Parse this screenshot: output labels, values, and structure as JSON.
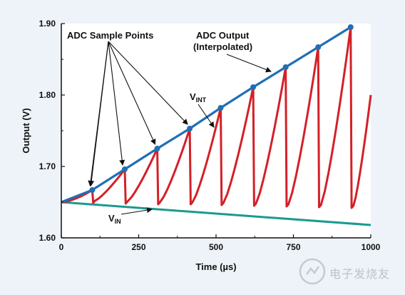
{
  "chart_data": {
    "type": "line",
    "xlabel": "Time (µs)",
    "ylabel": "Output (V)",
    "xlim": [
      0,
      1000
    ],
    "ylim": [
      1.6,
      1.9
    ],
    "x_ticks": [
      "0",
      "250",
      "500",
      "750",
      "1000"
    ],
    "y_ticks": [
      "1.60",
      "1.70",
      "1.80",
      "1.90"
    ],
    "grid": false,
    "series": [
      {
        "name": "ADC Output (Interpolated)",
        "color": "#1f6fb5",
        "x": [
          0,
          100,
          205,
          310,
          415,
          515,
          620,
          725,
          830,
          935
        ],
        "y": [
          1.65,
          1.667,
          1.696,
          1.725,
          1.753,
          1.782,
          1.811,
          1.839,
          1.867,
          1.895
        ],
        "markers": true
      },
      {
        "name": "VINT",
        "color": "#d42027",
        "sample_x": [
          100,
          205,
          310,
          415,
          515,
          620,
          725,
          830,
          935
        ],
        "sample_y": [
          1.667,
          1.696,
          1.725,
          1.753,
          1.782,
          1.811,
          1.839,
          1.867,
          1.895
        ],
        "reset_y": [
          1.649,
          1.648,
          1.647,
          1.647,
          1.646,
          1.645,
          1.644,
          1.643,
          1.642
        ]
      },
      {
        "name": "VIN",
        "color": "#1a9a90",
        "x": [
          0,
          1000
        ],
        "y": [
          1.65,
          1.618
        ]
      }
    ],
    "annotations": {
      "sample_points": "ADC Sample Points",
      "adc_output_line1": "ADC Output",
      "adc_output_line2": "(Interpolated)",
      "vint_main": "V",
      "vint_sub": "INT",
      "vin_main": "V",
      "vin_sub": "IN"
    }
  },
  "watermark": {
    "icon": "electronic-fan-logo-icon",
    "text": "电子发烧友"
  }
}
